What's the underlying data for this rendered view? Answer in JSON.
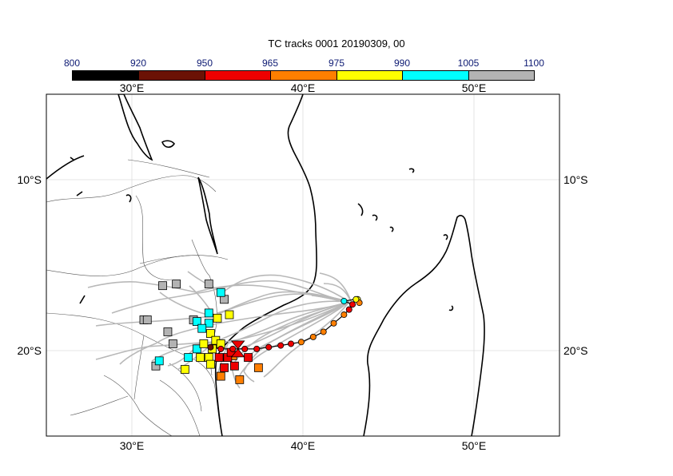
{
  "title": "TC tracks  0001 20190309, 00",
  "legend": {
    "labels": [
      "800",
      "920",
      "950",
      "965",
      "975",
      "990",
      "1005",
      "1100"
    ],
    "colors": [
      "#000000",
      "#6b1205",
      "#ee0000",
      "#ff7f00",
      "#ffff00",
      "#00ffff",
      "#b3b3b3"
    ]
  },
  "axes": {
    "x_ticks": [
      "30°E",
      "40°E",
      "50°E"
    ],
    "y_ticks": [
      "10°S",
      "20°S"
    ]
  },
  "chart_data": {
    "type": "scatter",
    "title": "TC tracks  0001 20190309, 00",
    "xlim": [
      25,
      55
    ],
    "ylim": [
      -25,
      -5
    ],
    "grid": true,
    "legend_placement": "top",
    "x_ticks": [
      30,
      40,
      50
    ],
    "y_ticks": [
      -10,
      -20
    ],
    "pressure_bins": [
      800,
      920,
      950,
      965,
      975,
      990,
      1005,
      1100
    ],
    "observed_track": [
      {
        "lon": 43.2,
        "lat": -17.0,
        "bin": 4
      },
      {
        "lon": 43.3,
        "lat": -17.2,
        "bin": 3
      },
      {
        "lon": 43.1,
        "lat": -17.0,
        "bin": 4
      },
      {
        "lon": 42.4,
        "lat": -17.1,
        "bin": 5
      },
      {
        "lon": 42.9,
        "lat": -17.3,
        "bin": 2
      },
      {
        "lon": 42.7,
        "lat": -17.6,
        "bin": 2
      },
      {
        "lon": 42.4,
        "lat": -17.9,
        "bin": 3
      },
      {
        "lon": 41.8,
        "lat": -18.4,
        "bin": 3
      },
      {
        "lon": 41.2,
        "lat": -18.9,
        "bin": 3
      },
      {
        "lon": 40.6,
        "lat": -19.2,
        "bin": 3
      },
      {
        "lon": 39.9,
        "lat": -19.5,
        "bin": 3
      },
      {
        "lon": 39.3,
        "lat": -19.6,
        "bin": 2
      },
      {
        "lon": 38.7,
        "lat": -19.7,
        "bin": 2
      },
      {
        "lon": 38.0,
        "lat": -19.8,
        "bin": 2
      },
      {
        "lon": 37.3,
        "lat": -19.9,
        "bin": 2
      },
      {
        "lon": 36.6,
        "lat": -19.9,
        "bin": 2
      },
      {
        "lon": 35.9,
        "lat": -19.9,
        "bin": 2
      },
      {
        "lon": 35.2,
        "lat": -19.9,
        "bin": 2
      },
      {
        "lon": 34.6,
        "lat": -19.8,
        "bin": 1
      }
    ],
    "observed_position": {
      "lon": 36.2,
      "lat": -19.9,
      "bin": 2
    },
    "ensemble_endpoints": [
      {
        "lon": 31.8,
        "lat": -16.2,
        "bin": 6
      },
      {
        "lon": 32.6,
        "lat": -16.1,
        "bin": 6
      },
      {
        "lon": 34.5,
        "lat": -16.1,
        "bin": 6
      },
      {
        "lon": 30.7,
        "lat": -18.2,
        "bin": 6
      },
      {
        "lon": 30.9,
        "lat": -18.2,
        "bin": 6
      },
      {
        "lon": 33.6,
        "lat": -18.2,
        "bin": 6
      },
      {
        "lon": 32.1,
        "lat": -18.9,
        "bin": 6
      },
      {
        "lon": 32.4,
        "lat": -19.6,
        "bin": 6
      },
      {
        "lon": 31.4,
        "lat": -20.9,
        "bin": 6
      },
      {
        "lon": 35.4,
        "lat": -17.0,
        "bin": 6
      },
      {
        "lon": 35.2,
        "lat": -16.6,
        "bin": 5
      },
      {
        "lon": 34.5,
        "lat": -17.8,
        "bin": 5
      },
      {
        "lon": 34.5,
        "lat": -18.4,
        "bin": 5
      },
      {
        "lon": 33.8,
        "lat": -18.3,
        "bin": 5
      },
      {
        "lon": 34.1,
        "lat": -18.7,
        "bin": 5
      },
      {
        "lon": 33.8,
        "lat": -19.9,
        "bin": 5
      },
      {
        "lon": 33.3,
        "lat": -20.4,
        "bin": 5
      },
      {
        "lon": 31.6,
        "lat": -20.6,
        "bin": 5
      },
      {
        "lon": 35.7,
        "lat": -17.9,
        "bin": 4
      },
      {
        "lon": 35.0,
        "lat": -18.1,
        "bin": 4
      },
      {
        "lon": 34.6,
        "lat": -19.0,
        "bin": 4
      },
      {
        "lon": 34.2,
        "lat": -19.6,
        "bin": 4
      },
      {
        "lon": 34.9,
        "lat": -19.4,
        "bin": 4
      },
      {
        "lon": 35.2,
        "lat": -19.6,
        "bin": 4
      },
      {
        "lon": 34.7,
        "lat": -19.9,
        "bin": 4
      },
      {
        "lon": 34.0,
        "lat": -20.4,
        "bin": 4
      },
      {
        "lon": 34.5,
        "lat": -20.4,
        "bin": 4
      },
      {
        "lon": 33.1,
        "lat": -21.1,
        "bin": 4
      },
      {
        "lon": 34.6,
        "lat": -20.8,
        "bin": 4
      },
      {
        "lon": 35.9,
        "lat": -20.3,
        "bin": 3
      },
      {
        "lon": 35.2,
        "lat": -21.5,
        "bin": 3
      },
      {
        "lon": 37.4,
        "lat": -21.0,
        "bin": 3
      },
      {
        "lon": 36.3,
        "lat": -21.7,
        "bin": 3
      },
      {
        "lon": 35.6,
        "lat": -20.4,
        "bin": 2
      },
      {
        "lon": 36.0,
        "lat": -20.9,
        "bin": 2
      },
      {
        "lon": 35.4,
        "lat": -21.0,
        "bin": 2
      },
      {
        "lon": 36.8,
        "lat": -20.4,
        "bin": 2
      },
      {
        "lon": 35.8,
        "lat": -20.1,
        "bin": 2
      },
      {
        "lon": 35.1,
        "lat": -20.4,
        "bin": 2
      }
    ]
  }
}
